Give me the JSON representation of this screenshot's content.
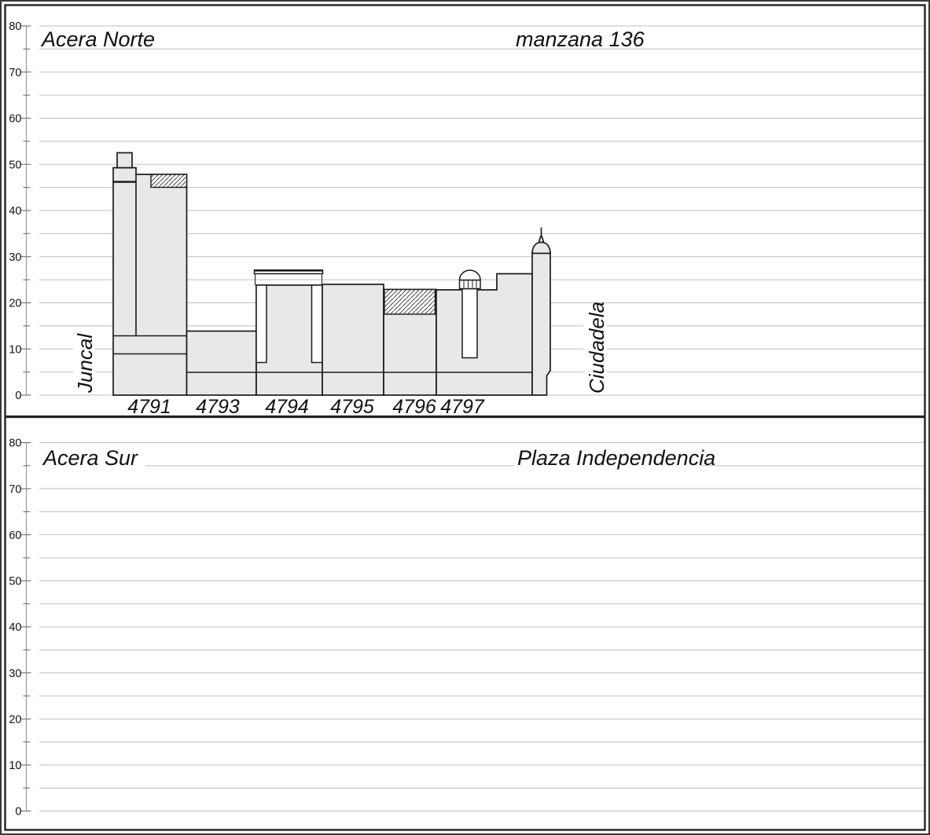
{
  "drawing": {
    "north_panel": {
      "title": "Acera Norte",
      "block_label": "manzana 136",
      "street_left": "Juncal",
      "street_right": "Ciudadela",
      "parcel_labels": [
        "4791",
        "4793",
        "4794",
        "4795",
        "4796",
        "4797"
      ],
      "axis": {
        "min": 0,
        "max": 80,
        "major_step": 10,
        "minor_step": 5,
        "tick_labels": [
          "0",
          "10",
          "20",
          "30",
          "40",
          "50",
          "60",
          "70",
          "80"
        ]
      }
    },
    "south_panel": {
      "title": "Acera Sur",
      "block_label": "Plaza Independencia",
      "axis": {
        "min": 0,
        "max": 80,
        "major_step": 10,
        "minor_step": 5,
        "tick_labels": [
          "0",
          "10",
          "20",
          "30",
          "40",
          "50",
          "60",
          "70",
          "80"
        ]
      }
    },
    "colors": {
      "building_fill": "#e8e8e8",
      "outline": "#1c1c1c",
      "gridline": "#bfbfbf",
      "background": "#ffffff"
    }
  }
}
